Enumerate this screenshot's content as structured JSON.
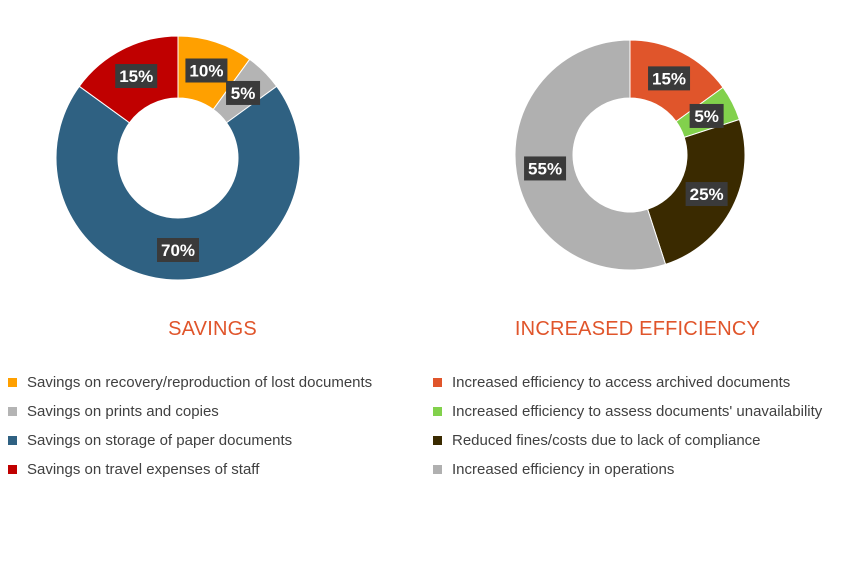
{
  "colors": {
    "title": "#e0552b",
    "label_box": "#3a3a3a",
    "legend_text": "#404040"
  },
  "chart_data": [
    {
      "type": "pie",
      "donut": true,
      "title": "SAVINGS",
      "legend_position": "bottom",
      "slices": [
        {
          "label": "Savings on recovery/reproduction of lost documents",
          "value": 10,
          "display": "10%",
          "color": "#ffa000"
        },
        {
          "label": "Savings on prints and copies",
          "value": 5,
          "display": "5%",
          "color": "#b4b4b4"
        },
        {
          "label": "Savings on storage of paper documents",
          "value": 70,
          "display": "70%",
          "color": "#2f6182"
        },
        {
          "label": "Savings on travel expenses of staff",
          "value": 15,
          "display": "15%",
          "color": "#c00000"
        }
      ]
    },
    {
      "type": "pie",
      "donut": true,
      "title": "INCREASED EFFICIENCY",
      "legend_position": "bottom",
      "slices": [
        {
          "label": "Increased efficiency to access archived documents",
          "value": 15,
          "display": "15%",
          "color": "#e0552b"
        },
        {
          "label": "Increased efficiency to assess documents' unavailability",
          "value": 5,
          "display": "5%",
          "color": "#82d14c"
        },
        {
          "label": "Reduced fines/costs due to lack of compliance",
          "value": 25,
          "display": "25%",
          "color": "#3a2a00"
        },
        {
          "label": "Increased efficiency in operations",
          "value": 55,
          "display": "55%",
          "color": "#b0b0b0"
        }
      ]
    }
  ]
}
